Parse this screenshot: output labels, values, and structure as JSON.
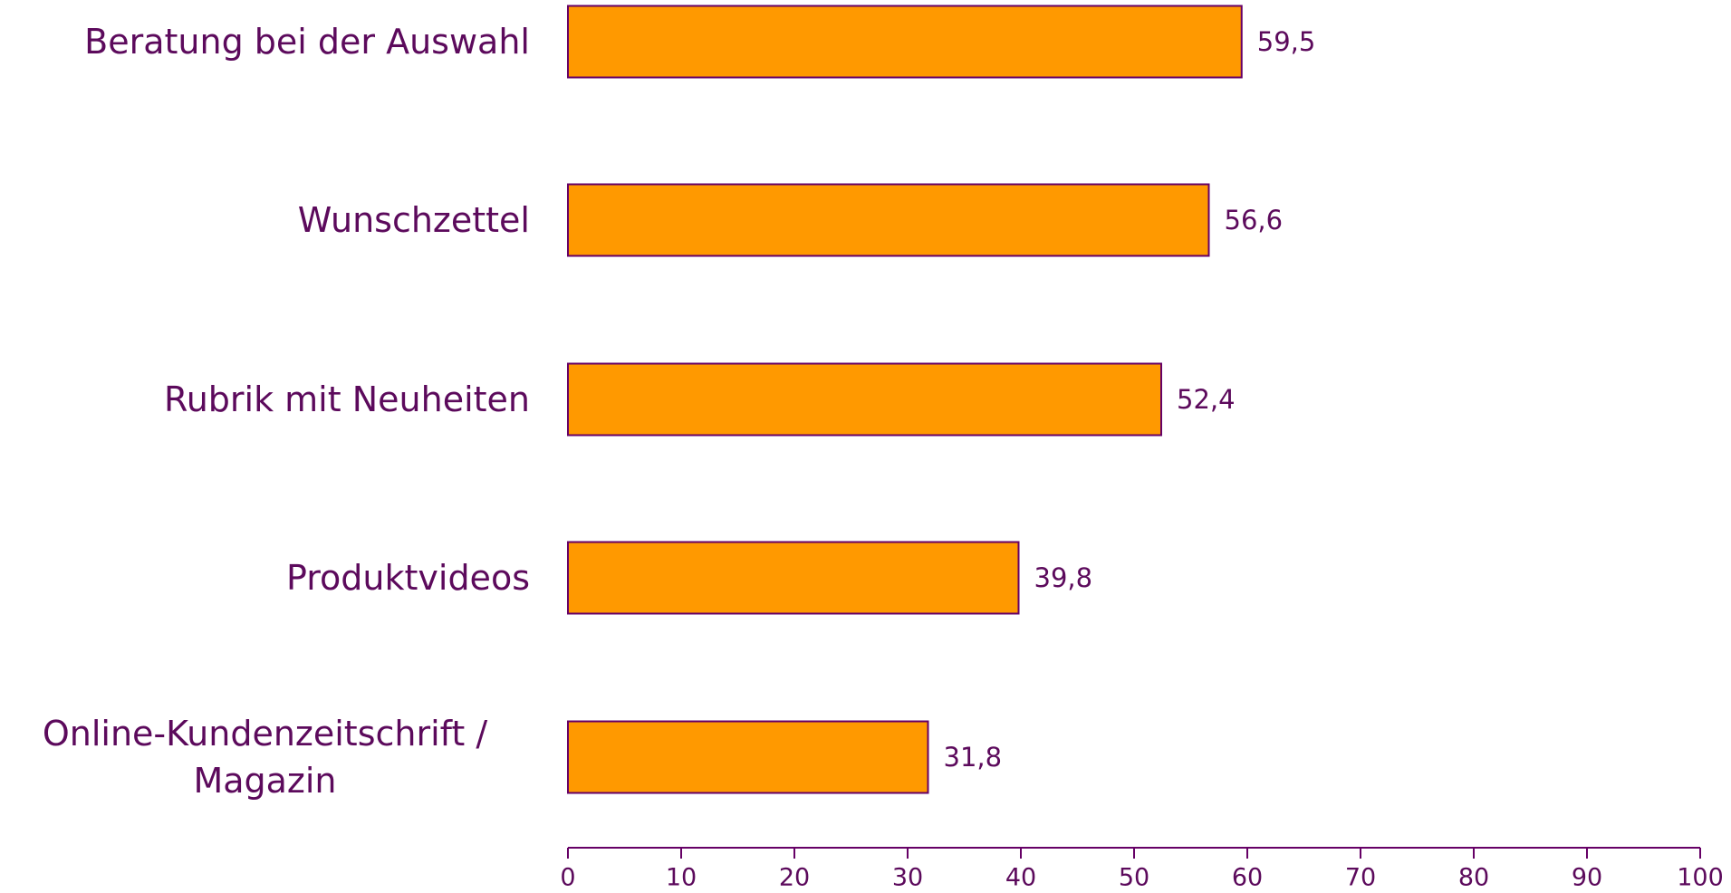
{
  "chart_data": {
    "type": "barh",
    "categories": [
      "Beratung bei der Auswahl",
      "Wunschzettel",
      "Rubrik mit Neuheiten",
      "Produktvideos",
      "Online-Kundenzeitschrift / Magazin"
    ],
    "values": [
      59.5,
      56.6,
      52.4,
      39.8,
      31.8
    ],
    "value_labels": [
      "59,5",
      "56,6",
      "52,4",
      "39,8",
      "31,8"
    ],
    "color": "#ff9900",
    "xlim": [
      0,
      100
    ],
    "xticks": [
      0,
      10,
      20,
      30,
      40,
      50,
      60,
      70,
      80,
      90,
      100
    ],
    "grid": false
  }
}
